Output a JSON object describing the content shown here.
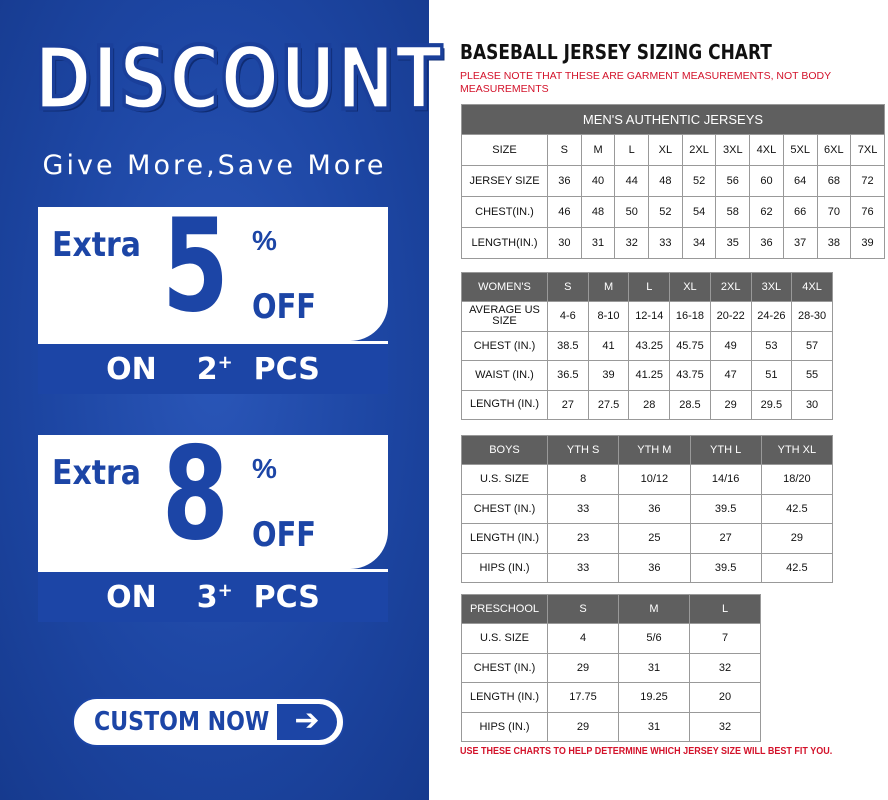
{
  "promo": {
    "headline": "DISCOUNT",
    "tagline": "Give More,Save More",
    "offers": [
      {
        "extra": "Extra",
        "value": "5",
        "percent": "%",
        "off": "OFF",
        "on": "ON",
        "qty": "2",
        "plus": "+",
        "pcs": "PCS"
      },
      {
        "extra": "Extra",
        "value": "8",
        "percent": "%",
        "off": "OFF",
        "on": "ON",
        "qty": "3",
        "plus": "+",
        "pcs": "PCS"
      }
    ],
    "cta": "CUSTOM NOW",
    "cta_icon": "arrow-right-icon",
    "colors": {
      "blue": "#1c45a6",
      "white": "#ffffff"
    }
  },
  "chart": {
    "title": "BASEBALL JERSEY SIZING CHART",
    "note": "PLEASE NOTE THAT THESE ARE GARMENT MEASUREMENTS, NOT BODY MEASUREMENTS",
    "footer": "USE THESE CHARTS TO HELP DETERMINE WHICH JERSEY SIZE WILL BEST FIT YOU.",
    "colors": {
      "header": "#5f5f5f",
      "note": "#d3122a"
    },
    "tables": [
      {
        "caption": "MEN'S AUTHENTIC JERSEYS",
        "header": [
          "SIZE",
          "S",
          "M",
          "L",
          "XL",
          "2XL",
          "3XL",
          "4XL",
          "5XL",
          "6XL",
          "7XL"
        ],
        "rows": [
          [
            "JERSEY SIZE",
            "36",
            "40",
            "44",
            "48",
            "52",
            "56",
            "60",
            "64",
            "68",
            "72"
          ],
          [
            "CHEST(IN.)",
            "46",
            "48",
            "50",
            "52",
            "54",
            "58",
            "62",
            "66",
            "70",
            "76"
          ],
          [
            "LENGTH(IN.)",
            "30",
            "31",
            "32",
            "33",
            "34",
            "35",
            "36",
            "37",
            "38",
            "39"
          ]
        ]
      },
      {
        "header": [
          "WOMEN'S",
          "S",
          "M",
          "L",
          "XL",
          "2XL",
          "3XL",
          "4XL"
        ],
        "rows": [
          [
            "AVERAGE US SIZE",
            "4-6",
            "8-10",
            "12-14",
            "16-18",
            "20-22",
            "24-26",
            "28-30"
          ],
          [
            "CHEST (IN.)",
            "38.5",
            "41",
            "43.25",
            "45.75",
            "49",
            "53",
            "57"
          ],
          [
            "WAIST (IN.)",
            "36.5",
            "39",
            "41.25",
            "43.75",
            "47",
            "51",
            "55"
          ],
          [
            "LENGTH (IN.)",
            "27",
            "27.5",
            "28",
            "28.5",
            "29",
            "29.5",
            "30"
          ]
        ]
      },
      {
        "header": [
          "BOYS",
          "YTH S",
          "YTH M",
          "YTH L",
          "YTH XL"
        ],
        "rows": [
          [
            "U.S. SIZE",
            "8",
            "10/12",
            "14/16",
            "18/20"
          ],
          [
            "CHEST (IN.)",
            "33",
            "36",
            "39.5",
            "42.5"
          ],
          [
            "LENGTH (IN.)",
            "23",
            "25",
            "27",
            "29"
          ],
          [
            "HIPS (IN.)",
            "33",
            "36",
            "39.5",
            "42.5"
          ]
        ]
      },
      {
        "header": [
          "PRESCHOOL",
          "S",
          "M",
          "L"
        ],
        "rows": [
          [
            "U.S. SIZE",
            "4",
            "5/6",
            "7"
          ],
          [
            "CHEST (IN.)",
            "29",
            "31",
            "32"
          ],
          [
            "LENGTH (IN.)",
            "17.75",
            "19.25",
            "20"
          ],
          [
            "HIPS (IN.)",
            "29",
            "31",
            "32"
          ]
        ]
      }
    ]
  }
}
